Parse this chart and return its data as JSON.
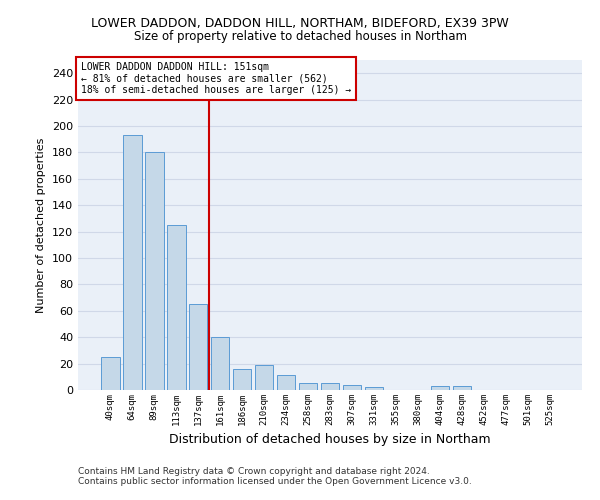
{
  "title": "LOWER DADDON, DADDON HILL, NORTHAM, BIDEFORD, EX39 3PW",
  "subtitle": "Size of property relative to detached houses in Northam",
  "xlabel": "Distribution of detached houses by size in Northam",
  "ylabel": "Number of detached properties",
  "footer1": "Contains HM Land Registry data © Crown copyright and database right 2024.",
  "footer2": "Contains public sector information licensed under the Open Government Licence v3.0.",
  "categories": [
    "40sqm",
    "64sqm",
    "89sqm",
    "113sqm",
    "137sqm",
    "161sqm",
    "186sqm",
    "210sqm",
    "234sqm",
    "258sqm",
    "283sqm",
    "307sqm",
    "331sqm",
    "355sqm",
    "380sqm",
    "404sqm",
    "428sqm",
    "452sqm",
    "477sqm",
    "501sqm",
    "525sqm"
  ],
  "values": [
    25,
    193,
    180,
    125,
    65,
    40,
    16,
    19,
    11,
    5,
    5,
    4,
    2,
    0,
    0,
    3,
    3,
    0,
    0,
    0,
    0
  ],
  "bar_color": "#c5d8e8",
  "bar_edge_color": "#5b9bd5",
  "vline_x_index": 4.5,
  "vline_color": "#cc0000",
  "annotation_line1": "LOWER DADDON DADDON HILL: 151sqm",
  "annotation_line2": "← 81% of detached houses are smaller (562)",
  "annotation_line3": "18% of semi-detached houses are larger (125) →",
  "annotation_box_color": "#ffffff",
  "annotation_box_edge_color": "#cc0000",
  "ylim": [
    0,
    250
  ],
  "yticks": [
    0,
    20,
    40,
    60,
    80,
    100,
    120,
    140,
    160,
    180,
    200,
    220,
    240
  ],
  "grid_color": "#d0d8e8",
  "background_color": "#eaf0f8",
  "title_fontsize": 9,
  "subtitle_fontsize": 8.5
}
